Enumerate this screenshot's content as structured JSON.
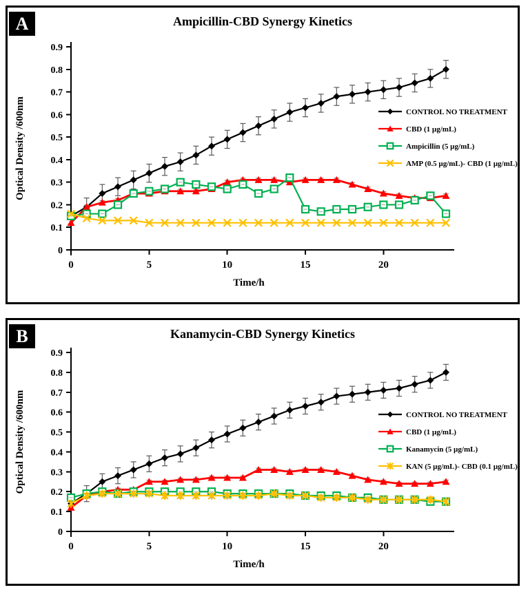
{
  "colors": {
    "control": "#000000",
    "cbd_red": "#ff0000",
    "antibiotic_green": "#00b050",
    "combo_gold": "#ffc000",
    "error_bar": "#595959",
    "axis": "#000000",
    "panel_border": "#000000",
    "panel_label_bg": "#000000",
    "panel_label_fg": "#ffffff"
  },
  "chart_data": [
    {
      "type": "line",
      "panel_label": "A",
      "title": "Ampicillin-CBD Synergy Kinetics",
      "xlabel": "Time/h",
      "ylabel": "Optical Density /600nm",
      "xlim": [
        0,
        24.5
      ],
      "ylim": [
        0,
        0.9
      ],
      "xticks": [
        0,
        5,
        10,
        15,
        20
      ],
      "ytick_step": 0.1,
      "grid": false,
      "legend_position": "inside-right",
      "x": [
        0,
        1,
        2,
        3,
        4,
        5,
        6,
        7,
        8,
        9,
        10,
        11,
        12,
        13,
        14,
        15,
        16,
        17,
        18,
        19,
        20,
        21,
        22,
        23,
        24
      ],
      "series": [
        {
          "key": "control",
          "name": "CONTROL NO TREATMENT",
          "color": "#000000",
          "marker": "diamond",
          "error": 0.04,
          "values": [
            0.15,
            0.19,
            0.25,
            0.28,
            0.31,
            0.34,
            0.37,
            0.39,
            0.42,
            0.46,
            0.49,
            0.52,
            0.55,
            0.58,
            0.61,
            0.63,
            0.65,
            0.68,
            0.69,
            0.7,
            0.71,
            0.72,
            0.74,
            0.76,
            0.8
          ]
        },
        {
          "key": "cbd",
          "name": "CBD (1 µg/mL)",
          "color": "#ff0000",
          "marker": "triangle",
          "error": 0.008,
          "values": [
            0.12,
            0.19,
            0.21,
            0.22,
            0.25,
            0.25,
            0.26,
            0.26,
            0.26,
            0.27,
            0.3,
            0.31,
            0.31,
            0.31,
            0.3,
            0.31,
            0.31,
            0.31,
            0.29,
            0.27,
            0.25,
            0.24,
            0.23,
            0.23,
            0.24
          ]
        },
        {
          "key": "ampicillin",
          "name": "Ampicillin (5 µg/mL)",
          "color": "#00b050",
          "marker": "square-open",
          "error": 0.015,
          "values": [
            0.15,
            0.16,
            0.16,
            0.2,
            0.25,
            0.26,
            0.27,
            0.3,
            0.29,
            0.28,
            0.27,
            0.29,
            0.25,
            0.27,
            0.32,
            0.18,
            0.17,
            0.18,
            0.18,
            0.19,
            0.2,
            0.2,
            0.22,
            0.24,
            0.16
          ]
        },
        {
          "key": "amp-cbd",
          "name": "AMP (0.5 µg/mL)- CBD (1 µg/mL)",
          "color": "#ffc000",
          "marker": "x",
          "error": 0,
          "values": [
            0.16,
            0.14,
            0.13,
            0.13,
            0.13,
            0.12,
            0.12,
            0.12,
            0.12,
            0.12,
            0.12,
            0.12,
            0.12,
            0.12,
            0.12,
            0.12,
            0.12,
            0.12,
            0.12,
            0.12,
            0.12,
            0.12,
            0.12,
            0.12,
            0.12
          ]
        }
      ]
    },
    {
      "type": "line",
      "panel_label": "B",
      "title": "Kanamycin-CBD Synergy Kinetics",
      "xlabel": "Time/h",
      "ylabel": "Optical Density /600nm",
      "xlim": [
        0,
        24.5
      ],
      "ylim": [
        0,
        0.9
      ],
      "xticks": [
        0,
        5,
        10,
        15,
        20
      ],
      "ytick_step": 0.1,
      "grid": false,
      "legend_position": "inside-right",
      "x": [
        0,
        1,
        2,
        3,
        4,
        5,
        6,
        7,
        8,
        9,
        10,
        11,
        12,
        13,
        14,
        15,
        16,
        17,
        18,
        19,
        20,
        21,
        22,
        23,
        24
      ],
      "series": [
        {
          "key": "control",
          "name": "CONTROL NO TREATMENT",
          "color": "#000000",
          "marker": "diamond",
          "error": 0.04,
          "values": [
            0.14,
            0.19,
            0.25,
            0.28,
            0.31,
            0.34,
            0.37,
            0.39,
            0.42,
            0.46,
            0.49,
            0.52,
            0.55,
            0.58,
            0.61,
            0.63,
            0.65,
            0.68,
            0.69,
            0.7,
            0.71,
            0.72,
            0.74,
            0.76,
            0.8
          ]
        },
        {
          "key": "cbd",
          "name": "CBD (1 µg/mL)",
          "color": "#ff0000",
          "marker": "triangle",
          "error": 0.008,
          "values": [
            0.12,
            0.18,
            0.2,
            0.21,
            0.21,
            0.25,
            0.25,
            0.26,
            0.26,
            0.27,
            0.27,
            0.27,
            0.31,
            0.31,
            0.3,
            0.31,
            0.31,
            0.3,
            0.28,
            0.26,
            0.25,
            0.24,
            0.24,
            0.24,
            0.25
          ]
        },
        {
          "key": "kanamycin",
          "name": "Kanamycin (5 µg/mL)",
          "color": "#00b050",
          "marker": "square-open",
          "error": 0.015,
          "values": [
            0.17,
            0.19,
            0.2,
            0.19,
            0.2,
            0.2,
            0.2,
            0.2,
            0.2,
            0.2,
            0.19,
            0.19,
            0.19,
            0.19,
            0.19,
            0.18,
            0.18,
            0.18,
            0.17,
            0.17,
            0.16,
            0.16,
            0.16,
            0.15,
            0.15
          ]
        },
        {
          "key": "kan-cbd",
          "name": "KAN (5 µg/mL)- CBD (0.1 µg/mL)",
          "color": "#ffc000",
          "marker": "star",
          "error": 0.012,
          "values": [
            0.14,
            0.18,
            0.19,
            0.19,
            0.19,
            0.19,
            0.18,
            0.18,
            0.18,
            0.18,
            0.18,
            0.18,
            0.18,
            0.19,
            0.18,
            0.18,
            0.17,
            0.17,
            0.17,
            0.16,
            0.16,
            0.16,
            0.16,
            0.16,
            0.15
          ]
        }
      ]
    }
  ]
}
